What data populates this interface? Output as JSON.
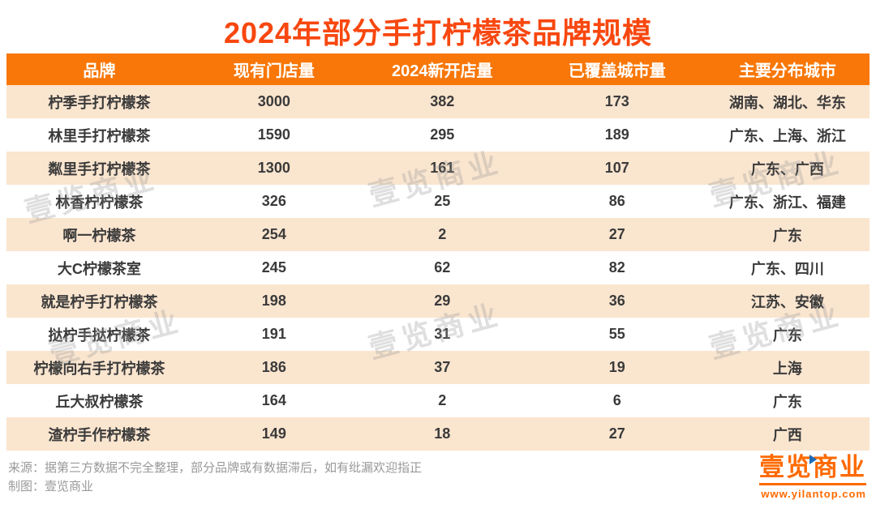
{
  "chart_data": {
    "type": "table",
    "title": "2024年部分手打柠檬茶品牌规模",
    "columns": [
      "品牌",
      "现有门店量",
      "2024新开店量",
      "已覆盖城市量",
      "主要分布城市"
    ],
    "rows": [
      [
        "柠季手打柠檬茶",
        "3000",
        "382",
        "173",
        "湖南、湖北、华东"
      ],
      [
        "林里手打柠檬茶",
        "1590",
        "295",
        "189",
        "广东、上海、浙江"
      ],
      [
        "粼里手打柠檬茶",
        "1300",
        "161",
        "107",
        "广东、广西"
      ],
      [
        "林香柠柠檬茶",
        "326",
        "25",
        "86",
        "广东、浙江、福建"
      ],
      [
        "啊一柠檬茶",
        "254",
        "2",
        "27",
        "广东"
      ],
      [
        "大C柠檬茶室",
        "245",
        "62",
        "82",
        "广东、四川"
      ],
      [
        "就是柠手打柠檬茶",
        "198",
        "29",
        "36",
        "江苏、安徽"
      ],
      [
        "挞柠手挞柠檬茶",
        "191",
        "31",
        "55",
        "广东"
      ],
      [
        "柠檬向右手打柠檬茶",
        "186",
        "37",
        "19",
        "上海"
      ],
      [
        "丘大叔柠檬茶",
        "164",
        "2",
        "6",
        "广东"
      ],
      [
        "渣柠手作柠檬茶",
        "149",
        "18",
        "27",
        "广西"
      ]
    ]
  },
  "footer": {
    "source_line": "来源：据第三方数据不完全整理，部分品牌或有数据滞后，如有纰漏欢迎指正",
    "credit_line": "制图：壹览商业"
  },
  "logo": {
    "text": "壹览商业",
    "url": "www.yilantop.com"
  },
  "watermark": {
    "text": "壹览商业"
  },
  "colors": {
    "title": "#F8470F",
    "header_bg": "#F87708",
    "header_text": "#FFFFFF",
    "row_alt_bg": "#FAE5CF",
    "row_text": "#3A3A3A",
    "footer_text": "#999999",
    "logo_orange": "#FF6A00",
    "logo_blue": "#1E6BB8"
  }
}
